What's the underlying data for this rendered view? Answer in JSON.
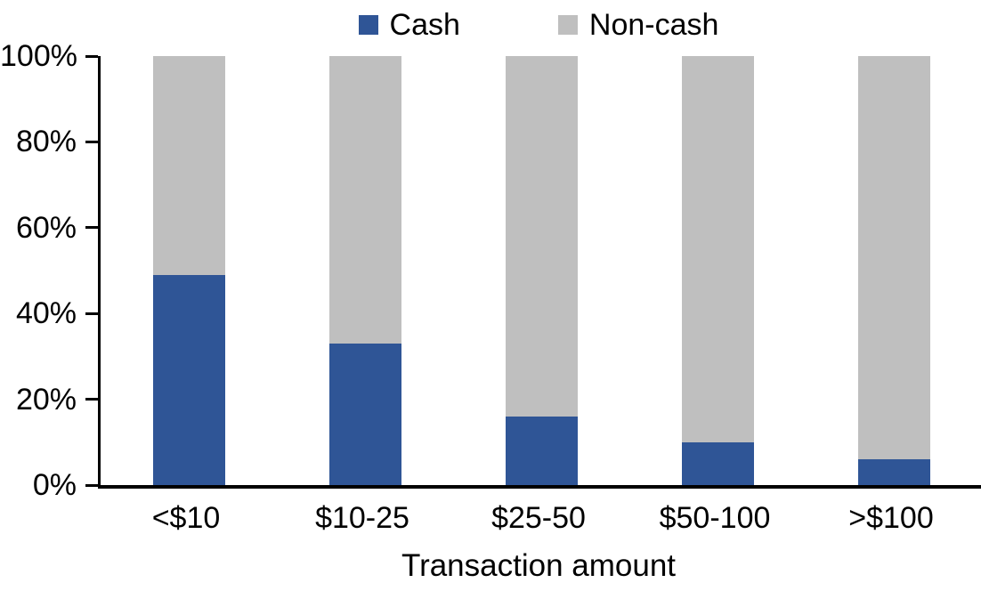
{
  "chart_data": {
    "type": "bar",
    "stacked": true,
    "title": "",
    "xlabel": "Transaction amount",
    "ylabel": "",
    "categories": [
      "<$10",
      "$10-25",
      "$25-50",
      "$50-100",
      ">$100"
    ],
    "series": [
      {
        "name": "Cash",
        "color": "#2f5596",
        "values": [
          49,
          33,
          16,
          10,
          6
        ]
      },
      {
        "name": "Non-cash",
        "color": "#bfbfbf",
        "values": [
          51,
          67,
          84,
          90,
          94
        ]
      }
    ],
    "ylim": [
      0,
      100
    ],
    "ytick_labels": [
      "0%",
      "20%",
      "40%",
      "60%",
      "80%",
      "100%"
    ],
    "legend_position": "top-center",
    "grid": false,
    "axis_color": "#000000"
  }
}
